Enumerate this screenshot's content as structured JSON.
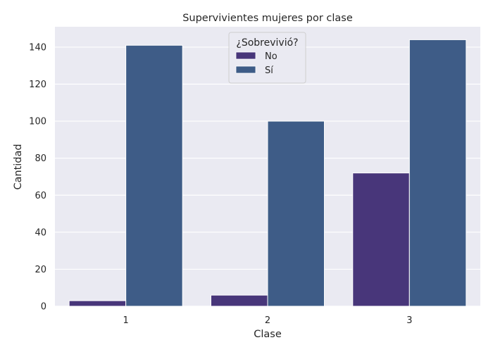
{
  "chart_data": {
    "type": "bar",
    "title": "Supervivientes mujeres por clase",
    "xlabel": "Clase",
    "ylabel": "Cantidad",
    "categories": [
      "1",
      "2",
      "3"
    ],
    "series": [
      {
        "name": "No",
        "values": [
          3,
          6,
          72
        ],
        "color": "#48367a"
      },
      {
        "name": "Sí",
        "values": [
          141,
          100,
          144
        ],
        "color": "#3e5c87"
      }
    ],
    "ylim": [
      0,
      151
    ],
    "yticks": [
      0,
      20,
      40,
      60,
      80,
      100,
      120,
      140
    ],
    "legend": {
      "title": "¿Sobrevivió?",
      "placement": "top-center"
    },
    "grid": true,
    "background_color": "#eaeaf2"
  }
}
